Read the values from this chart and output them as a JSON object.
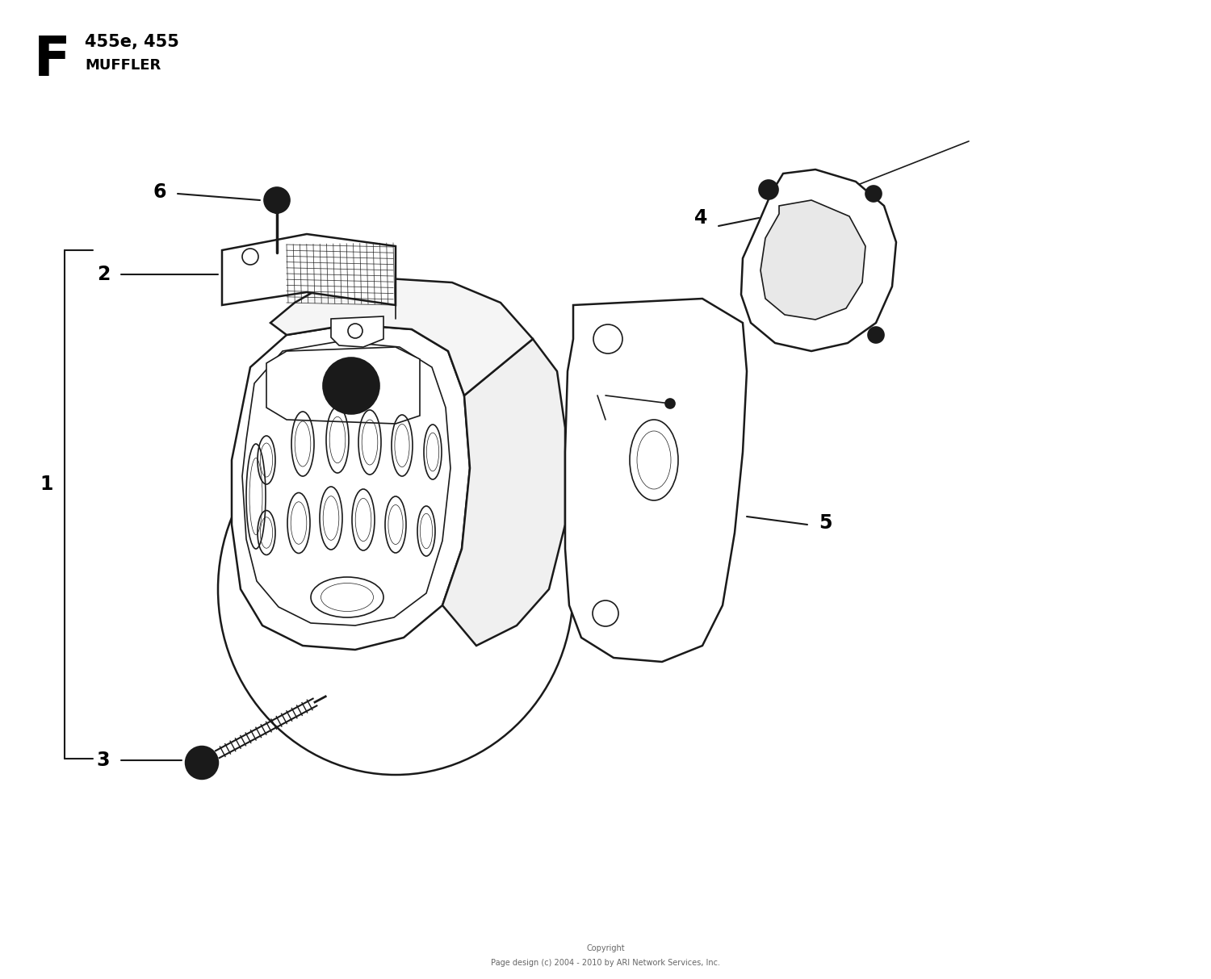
{
  "title_letter": "F",
  "title_model": "455e, 455",
  "title_section": "MUFFLER",
  "copyright_line1": "Copyright",
  "copyright_line2": "Page design (c) 2004 - 2010 by ARI Network Services, Inc.",
  "bg_color": "#ffffff",
  "line_color": "#1a1a1a",
  "figsize": [
    15.0,
    12.13
  ],
  "dpi": 100
}
